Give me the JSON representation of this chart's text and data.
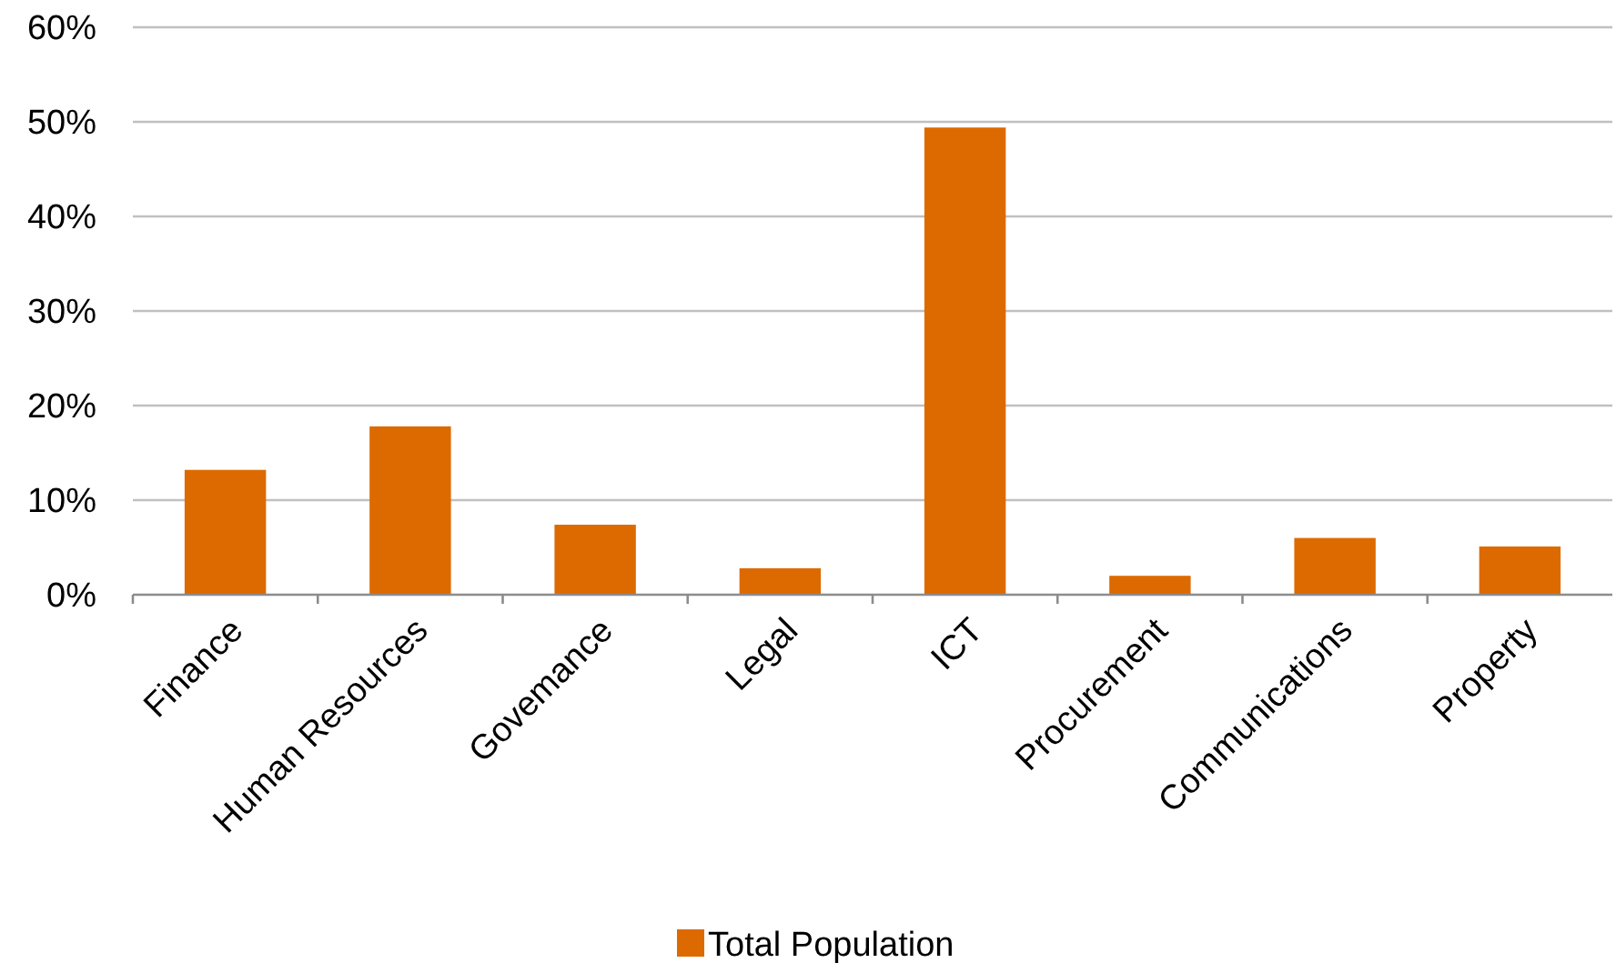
{
  "chart_data": {
    "type": "bar",
    "categories": [
      "Finance",
      "Human Resources",
      "Govemance",
      "Legal",
      "ICT",
      "Procurement",
      "Communications",
      "Property"
    ],
    "series": [
      {
        "name": "Total Population",
        "color": "#dd6a00",
        "values": [
          13.2,
          17.8,
          7.4,
          2.8,
          49.4,
          2.0,
          6.0,
          5.1
        ]
      }
    ],
    "ylim": [
      0,
      60
    ],
    "yticks": [
      {
        "value": 0,
        "label": "0%"
      },
      {
        "value": 10,
        "label": "10%"
      },
      {
        "value": 20,
        "label": "20%"
      },
      {
        "value": 30,
        "label": "30%"
      },
      {
        "value": 40,
        "label": "40%"
      },
      {
        "value": 50,
        "label": "50%"
      },
      {
        "value": 60,
        "label": "60%"
      }
    ],
    "grid": "y",
    "legend": "bottom"
  }
}
